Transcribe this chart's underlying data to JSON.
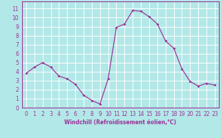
{
  "x": [
    0,
    1,
    2,
    3,
    4,
    5,
    6,
    7,
    8,
    9,
    10,
    11,
    12,
    13,
    14,
    15,
    16,
    17,
    18,
    19,
    20,
    21,
    22,
    23
  ],
  "y": [
    3.8,
    4.5,
    5.0,
    4.5,
    3.5,
    3.2,
    2.6,
    1.4,
    0.8,
    0.4,
    3.2,
    8.9,
    9.3,
    10.8,
    10.7,
    10.1,
    9.3,
    7.4,
    6.6,
    4.3,
    2.9,
    2.4,
    2.7,
    2.5
  ],
  "line_color": "#993399",
  "marker": "D",
  "marker_size": 2.0,
  "bg_color": "#b3e8e8",
  "grid_color": "#ffffff",
  "xlabel": "Windchill (Refroidissement éolien,°C)",
  "ylabel_ticks": [
    0,
    1,
    2,
    3,
    4,
    5,
    6,
    7,
    8,
    9,
    10,
    11
  ],
  "xlim": [
    -0.5,
    23.5
  ],
  "ylim": [
    0,
    11.8
  ],
  "tick_fontsize": 5.5,
  "xlabel_fontsize": 5.5
}
